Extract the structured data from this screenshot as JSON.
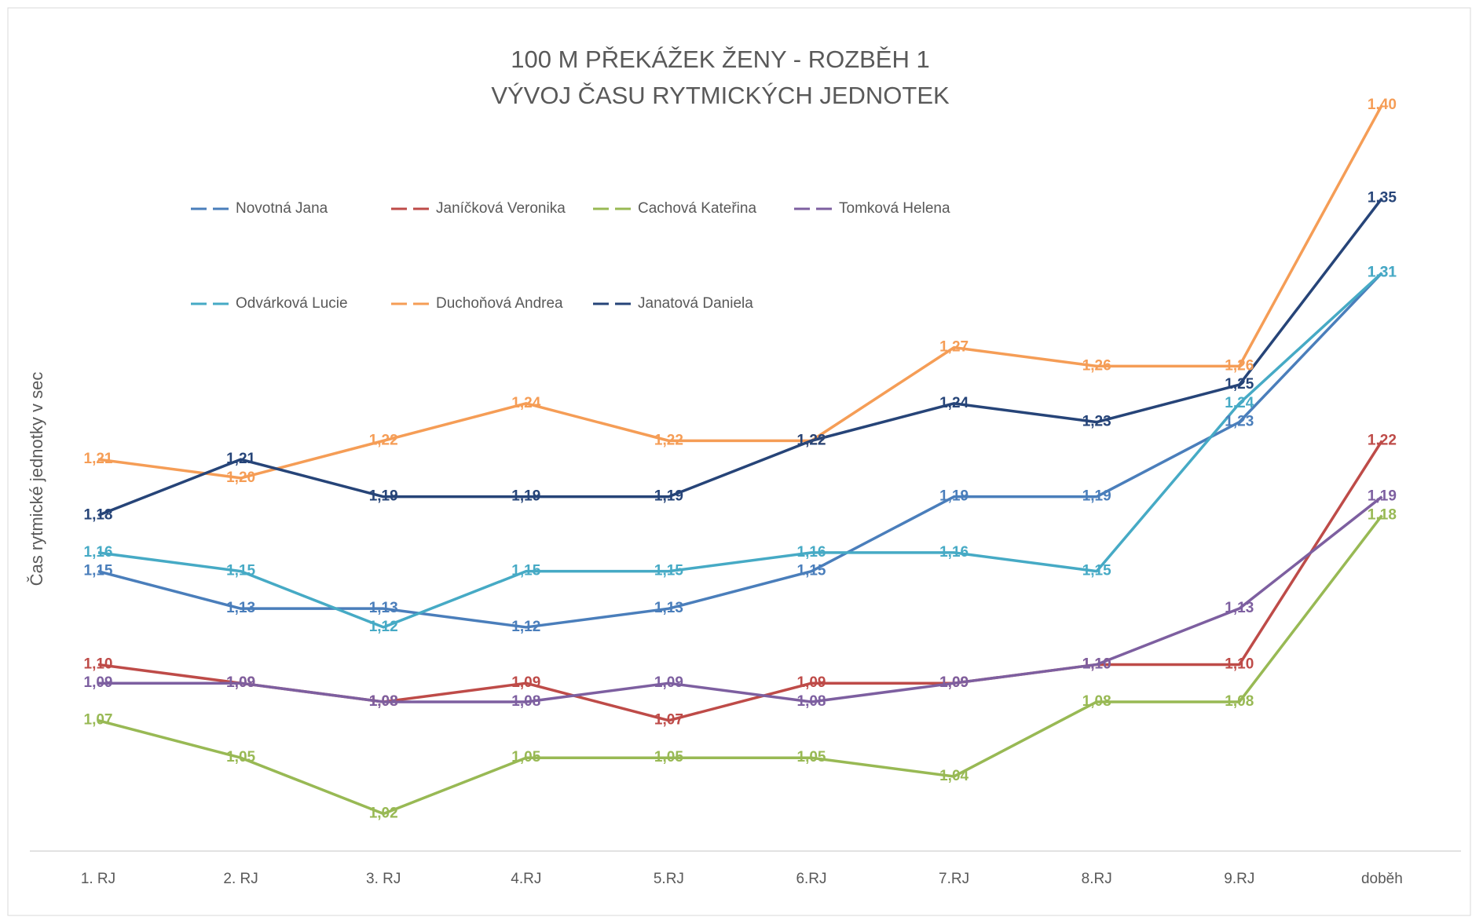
{
  "chart_data": {
    "type": "line",
    "title": "100 M PŘEKÁŽEK ŽENY - ROZBĚH 1",
    "subtitle": "VÝVOJ ČASU RYTMICKÝCH JEDNOTEK",
    "y_label": "Čas rytmické jednotky v sec",
    "categories": [
      "1. RJ",
      "2. RJ",
      "3. RJ",
      "4.RJ",
      "5.RJ",
      "6.RJ",
      "7.RJ",
      "8.RJ",
      "9.RJ",
      "doběh"
    ],
    "ylim": [
      1.0,
      1.45
    ],
    "grid": false,
    "legend": "top",
    "series": [
      {
        "name": "Novotná Jana",
        "color": "#4a7ebb",
        "values": [
          1.15,
          1.13,
          1.13,
          1.12,
          1.13,
          1.15,
          1.19,
          1.19,
          1.23,
          1.31
        ],
        "value_labels": [
          "1,15",
          "1,13",
          "1,13",
          "1,12",
          "1,13",
          "1,15",
          "1,19",
          "1,19",
          "1,23",
          "1,31"
        ]
      },
      {
        "name": "Janíčková Veronika",
        "color": "#be4b48",
        "values": [
          1.1,
          1.09,
          1.08,
          1.09,
          1.07,
          1.09,
          1.09,
          1.1,
          1.1,
          1.22
        ],
        "value_labels": [
          "1,10",
          "1,09",
          "1,08",
          "1,09",
          "1,07",
          "1,09",
          "1,09",
          "1,10",
          "1,10",
          "1,22"
        ]
      },
      {
        "name": "Cachová Kateřina",
        "color": "#98b954",
        "values": [
          1.07,
          1.05,
          1.02,
          1.05,
          1.05,
          1.05,
          1.04,
          1.08,
          1.08,
          1.18
        ],
        "value_labels": [
          "1,07",
          "1,05",
          "1,02",
          "1,05",
          "1,05",
          "1,05",
          "1,04",
          "1,08",
          "1,08",
          "1,18"
        ]
      },
      {
        "name": "Tomková Helena",
        "color": "#7d5fa0",
        "values": [
          1.09,
          1.09,
          1.08,
          1.08,
          1.09,
          1.08,
          1.09,
          1.1,
          1.13,
          1.19
        ],
        "value_labels": [
          "1,09",
          "1,09",
          "1,08",
          "1,08",
          "1,09",
          "1,08",
          "1,09",
          "1,10",
          "1,13",
          "1,19"
        ]
      },
      {
        "name": "Odvárková Lucie",
        "color": "#46aac5",
        "values": [
          1.16,
          1.15,
          1.12,
          1.15,
          1.15,
          1.16,
          1.16,
          1.15,
          1.24,
          1.31
        ],
        "value_labels": [
          "1,16",
          "1,15",
          "1,12",
          "1,15",
          "1,15",
          "1,16",
          "1,16",
          "1,15",
          "1,24",
          "1,31"
        ]
      },
      {
        "name": "Duchoňová Andrea",
        "color": "#f59d56",
        "values": [
          1.21,
          1.2,
          1.22,
          1.24,
          1.22,
          1.22,
          1.27,
          1.26,
          1.26,
          1.4
        ],
        "value_labels": [
          "1,21",
          "1,20",
          "1,22",
          "1,24",
          "1,22",
          "1,22",
          "1,27",
          "1,26",
          "1,26",
          "1,40"
        ]
      },
      {
        "name": "Janatová Daniela",
        "color": "#264478",
        "values": [
          1.18,
          1.21,
          1.19,
          1.19,
          1.19,
          1.22,
          1.24,
          1.23,
          1.25,
          1.35
        ],
        "value_labels": [
          "1,18",
          "1,21",
          "1,19",
          "1,19",
          "1,19",
          "1,22",
          "1,24",
          "1,23",
          "1,25",
          "1,35"
        ]
      }
    ]
  }
}
